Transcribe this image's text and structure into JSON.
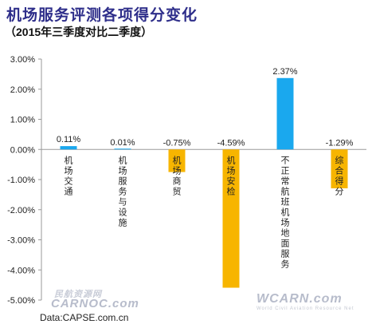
{
  "header": {
    "title": "机场服务评测各项得分变化",
    "subtitle": "（2015年三季度对比二季度）"
  },
  "source": "Data:CAPSE.com.cn",
  "watermarks": {
    "left_top": "民航资源网",
    "left_bottom": "CARNOC.com",
    "right_top": "WCARN.com",
    "right_bottom": "World Civil Aviation Resource Net"
  },
  "colors": {
    "positive": "#1aa8ee",
    "negative": "#f7b500",
    "axis": "#9a9a9a"
  },
  "chart_data": {
    "type": "bar",
    "title": "机场服务评测各项得分变化",
    "subtitle": "（2015年三季度对比二季度）",
    "categories": [
      "机场交通",
      "机场服务与设施",
      "机场商贸",
      "机场安检",
      "不正常航班机场地面服务",
      "综合得分"
    ],
    "values": [
      0.11,
      0.01,
      -0.75,
      -4.59,
      2.37,
      -1.29
    ],
    "value_labels": [
      "0.11%",
      "0.01%",
      "-0.75%",
      "-4.59%",
      "2.37%",
      "-1.29%"
    ],
    "yticks": [
      3,
      2,
      1,
      0,
      -1,
      -2,
      -3,
      -4,
      -5
    ],
    "ytick_labels": [
      "3.00%",
      "2.00%",
      "1.00%",
      "0.00%",
      "-1.00%",
      "-2.00%",
      "-3.00%",
      "-4.00%",
      "-5.00%"
    ],
    "ylim": [
      -5,
      3
    ],
    "grid": false,
    "legend": "none"
  }
}
